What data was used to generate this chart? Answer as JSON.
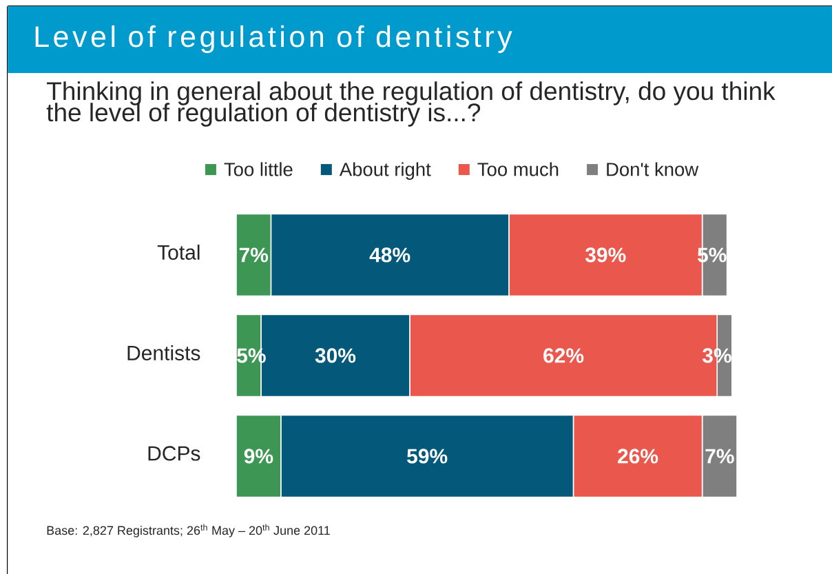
{
  "chart_data": {
    "type": "bar",
    "orientation": "horizontal",
    "stacked": true,
    "title": "Level of regulation of dentistry",
    "subtitle": "Thinking in general about the regulation of dentistry, do you think the level of regulation of dentistry is...?",
    "categories": [
      "Total",
      "Dentists",
      "DCPs"
    ],
    "series": [
      {
        "name": "Too little",
        "color": "#3d9653",
        "values": [
          7,
          5,
          9
        ],
        "value_labels": [
          "7%",
          "5%",
          "9%"
        ]
      },
      {
        "name": "About right",
        "color": "#04587a",
        "values": [
          48,
          30,
          59
        ],
        "value_labels": [
          "48%",
          "30%",
          "59%"
        ]
      },
      {
        "name": "Too much",
        "color": "#ea574d",
        "values": [
          39,
          62,
          26
        ],
        "value_labels": [
          "39%",
          "62%",
          "26%"
        ]
      },
      {
        "name": "Don't know",
        "color": "#7f7f7f",
        "values": [
          5,
          3,
          7
        ],
        "value_labels": [
          "5%",
          "3%",
          "7%"
        ]
      }
    ],
    "legend": "top",
    "annotations": [
      "Base: 2,827 Registrants; 26$^{th}$ May – 20$^{th}$ June 2011"
    ]
  }
}
